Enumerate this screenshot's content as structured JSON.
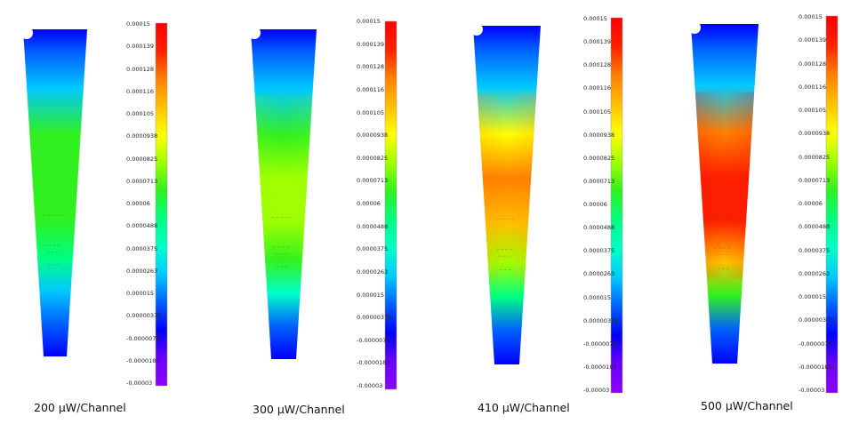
{
  "colorbar_ticks": [
    "0.00015",
    "0.000139",
    "0.000128",
    "0.000116",
    "0.000105",
    "0.0000938",
    "0.0000825",
    "0.0000713",
    "0.00006",
    "0.0000488",
    "0.0000375",
    "0.0000263",
    "0.000015",
    "0.00000375",
    "-0.0000075",
    "-0.0000187",
    "-0.00003"
  ],
  "palette": [
    "#8a00ff",
    "#6a00ff",
    "#0000ff",
    "#0060ff",
    "#00c8ff",
    "#00ffc8",
    "#00ff80",
    "#30f020",
    "#a0ff00",
    "#ffff00",
    "#ffc000",
    "#ff8000",
    "#ff2000",
    "#ff0000"
  ],
  "panels": [
    {
      "caption": "200 µW/Channel",
      "level": 7.13e-05
    },
    {
      "caption": "300 µW/Channel",
      "level": 8.25e-05
    },
    {
      "caption": "410 µW/Channel",
      "level": 0.000116
    },
    {
      "caption": "500 µW/Channel",
      "level": 0.000139
    }
  ]
}
